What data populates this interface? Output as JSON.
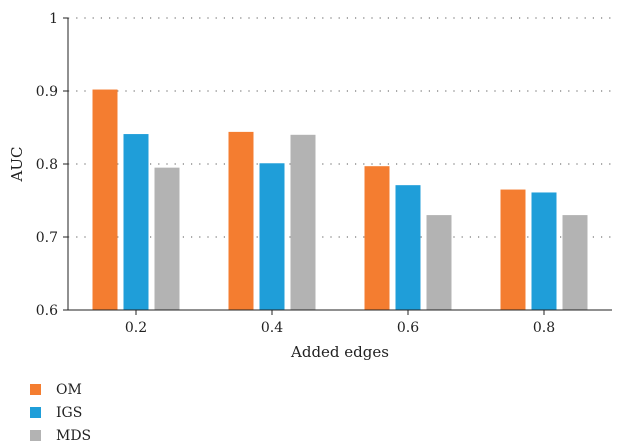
{
  "chart_data": {
    "type": "bar",
    "categories": [
      "0.2",
      "0.4",
      "0.6",
      "0.8"
    ],
    "series": [
      {
        "name": "OM",
        "color": "#F47D30",
        "values": [
          0.902,
          0.844,
          0.797,
          0.765
        ]
      },
      {
        "name": "IGS",
        "color": "#1F9ED9",
        "values": [
          0.841,
          0.801,
          0.771,
          0.761
        ]
      },
      {
        "name": "MDS",
        "color": "#B3B3B3",
        "values": [
          0.795,
          0.84,
          0.73,
          0.73
        ]
      }
    ],
    "xlabel": "Added edges",
    "ylabel": "AUC",
    "ylim": [
      0.6,
      1.0
    ],
    "yticks": [
      "0.6",
      "0.7",
      "0.8",
      "0.9",
      "1"
    ],
    "grid": "dotted horizontal",
    "legend": "bottom-left"
  }
}
